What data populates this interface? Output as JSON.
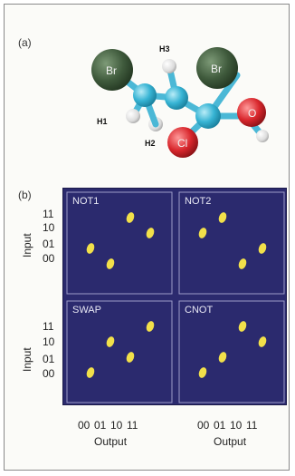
{
  "labels": {
    "a": "(a)",
    "b": "(b)"
  },
  "molecule": {
    "atoms": [
      {
        "id": "br-left",
        "label": "Br",
        "color": "#3f5a3c"
      },
      {
        "id": "br-right",
        "label": "Br",
        "color": "#3f5a3c"
      },
      {
        "id": "cl",
        "label": "Cl",
        "color": "#d8262c"
      },
      {
        "id": "o",
        "label": "O",
        "color": "#d8262c"
      }
    ],
    "hydrogens": [
      "H3",
      "H1",
      "H2"
    ]
  },
  "chart_data": {
    "type": "scatter",
    "xlabel": "Output",
    "ylabel": "Input",
    "x_ticks": [
      "00",
      "01",
      "10",
      "11"
    ],
    "y_ticks": [
      "11",
      "10",
      "01",
      "00"
    ],
    "gates": [
      {
        "name": "NOT1",
        "points": [
          {
            "input": "00",
            "output": "01"
          },
          {
            "input": "01",
            "output": "00"
          },
          {
            "input": "10",
            "output": "11"
          },
          {
            "input": "11",
            "output": "10"
          }
        ]
      },
      {
        "name": "NOT2",
        "points": [
          {
            "input": "00",
            "output": "10"
          },
          {
            "input": "01",
            "output": "11"
          },
          {
            "input": "10",
            "output": "00"
          },
          {
            "input": "11",
            "output": "01"
          }
        ]
      },
      {
        "name": "SWAP",
        "points": [
          {
            "input": "00",
            "output": "00"
          },
          {
            "input": "01",
            "output": "10"
          },
          {
            "input": "10",
            "output": "01"
          },
          {
            "input": "11",
            "output": "11"
          }
        ]
      },
      {
        "name": "CNOT",
        "points": [
          {
            "input": "00",
            "output": "00"
          },
          {
            "input": "01",
            "output": "01"
          },
          {
            "input": "10",
            "output": "11"
          },
          {
            "input": "11",
            "output": "10"
          }
        ]
      }
    ],
    "colors": {
      "background": "#2b2a6e",
      "point": "#f2e04a",
      "border": "#9c9cc8"
    }
  }
}
